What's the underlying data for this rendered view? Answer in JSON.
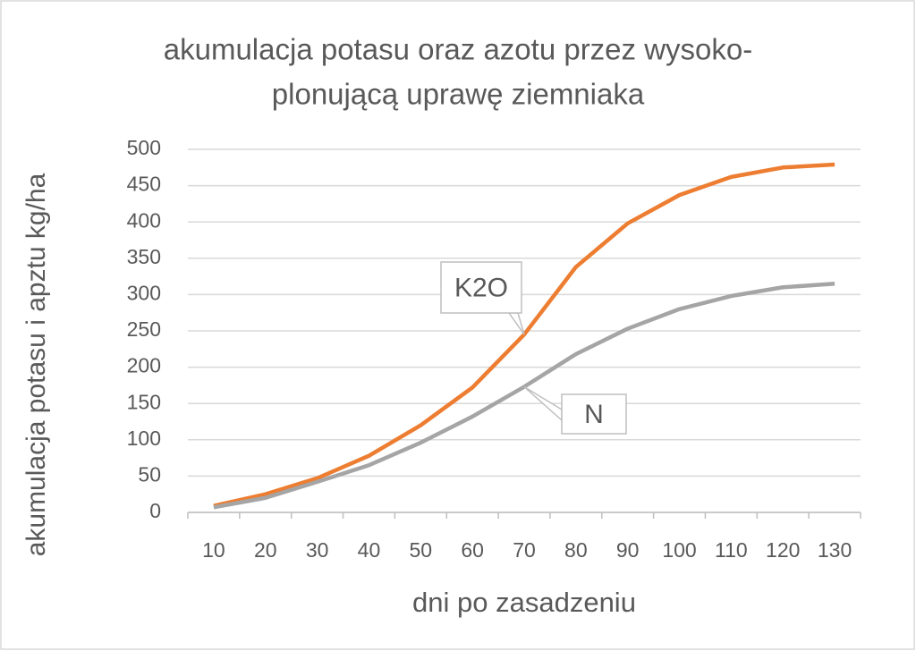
{
  "chart_data": {
    "type": "line",
    "title": [
      "akumulacja potasu oraz azotu przez wysoko-",
      "plonującą uprawę ziemniaka"
    ],
    "x_label": "dni po zasadzeniu",
    "y_label": "akumulacja potasu i apztu kg/ha",
    "categories": [
      "10",
      "20",
      "30",
      "40",
      "50",
      "60",
      "70",
      "80",
      "90",
      "100",
      "110",
      "120",
      "130"
    ],
    "series": [
      {
        "name": "K2O",
        "color": "#ed7d31",
        "values": [
          9,
          25,
          47,
          78,
          120,
          172,
          245,
          338,
          398,
          437,
          462,
          475,
          479
        ]
      },
      {
        "name": "N",
        "color": "#a5a5a5",
        "values": [
          7,
          20,
          42,
          65,
          96,
          132,
          173,
          218,
          253,
          280,
          298,
          310,
          315
        ]
      }
    ],
    "ylim": [
      0,
      500
    ],
    "yticks": [
      0,
      50,
      100,
      150,
      200,
      250,
      300,
      350,
      400,
      450,
      500
    ],
    "grid": true
  }
}
